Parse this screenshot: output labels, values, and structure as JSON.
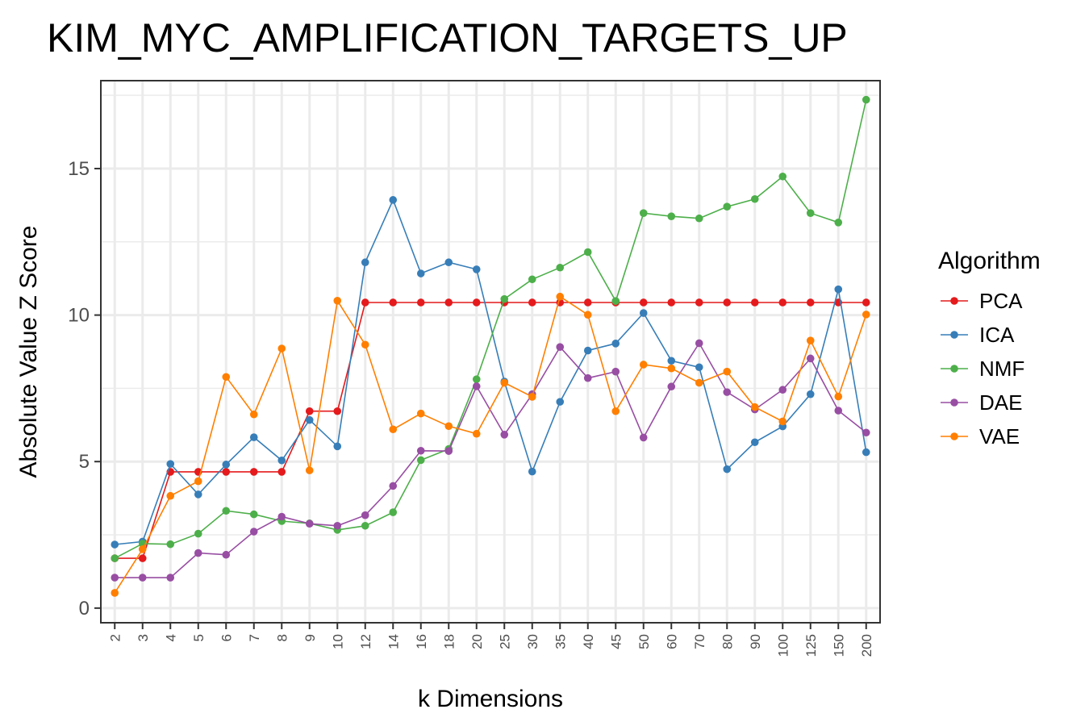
{
  "chart_data": {
    "type": "line",
    "title": "KIM_MYC_AMPLIFICATION_TARGETS_UP",
    "xlabel": "k Dimensions",
    "ylabel": "Absolute Value Z Score",
    "categories": [
      "2",
      "3",
      "4",
      "5",
      "6",
      "7",
      "8",
      "9",
      "10",
      "12",
      "14",
      "16",
      "18",
      "20",
      "25",
      "30",
      "35",
      "40",
      "45",
      "50",
      "60",
      "70",
      "80",
      "90",
      "100",
      "125",
      "150",
      "200"
    ],
    "ylim": [
      -0.5,
      18
    ],
    "yticks": [
      0,
      5,
      10,
      15
    ],
    "ytick_labels": [
      "0",
      "5",
      "10",
      "15"
    ],
    "grid": true,
    "legend": {
      "title": "Algorithm",
      "position": "right"
    },
    "series": [
      {
        "name": "PCA",
        "color": "#e41a1c",
        "values": [
          1.7,
          1.7,
          4.65,
          4.65,
          4.65,
          4.65,
          4.65,
          6.72,
          6.72,
          10.43,
          10.43,
          10.43,
          10.43,
          10.43,
          10.43,
          10.43,
          10.43,
          10.43,
          10.43,
          10.43,
          10.43,
          10.43,
          10.43,
          10.43,
          10.43,
          10.43,
          10.43,
          10.43
        ]
      },
      {
        "name": "ICA",
        "color": "#377eb8",
        "values": [
          2.17,
          2.27,
          4.92,
          3.88,
          4.9,
          5.83,
          5.04,
          6.42,
          5.52,
          11.8,
          13.93,
          11.42,
          11.8,
          11.56,
          7.73,
          4.66,
          7.04,
          8.79,
          9.03,
          10.07,
          8.44,
          8.22,
          4.74,
          5.66,
          6.2,
          7.3,
          10.88,
          5.32
        ]
      },
      {
        "name": "NMF",
        "color": "#4daf4a",
        "values": [
          1.7,
          2.2,
          2.18,
          2.54,
          3.32,
          3.2,
          2.97,
          2.89,
          2.67,
          2.81,
          3.27,
          5.05,
          5.43,
          7.81,
          10.55,
          11.22,
          11.62,
          12.15,
          10.48,
          13.48,
          13.37,
          13.3,
          13.7,
          13.96,
          14.73,
          13.48,
          13.16,
          17.35
        ]
      },
      {
        "name": "DAE",
        "color": "#984ea3",
        "values": [
          1.04,
          1.04,
          1.04,
          1.88,
          1.82,
          2.61,
          3.12,
          2.88,
          2.81,
          3.17,
          4.17,
          5.37,
          5.36,
          7.57,
          5.92,
          7.3,
          8.91,
          7.85,
          8.07,
          5.82,
          7.56,
          9.04,
          7.37,
          6.78,
          7.45,
          8.52,
          6.74,
          5.99
        ]
      },
      {
        "name": "VAE",
        "color": "#ff7f00",
        "values": [
          0.52,
          2.01,
          3.83,
          4.33,
          7.89,
          6.61,
          8.86,
          4.7,
          10.49,
          8.99,
          6.1,
          6.64,
          6.21,
          5.95,
          7.69,
          7.21,
          10.63,
          10.01,
          6.72,
          8.31,
          8.18,
          7.69,
          8.07,
          6.86,
          6.37,
          9.13,
          7.22,
          10.02
        ]
      }
    ]
  }
}
